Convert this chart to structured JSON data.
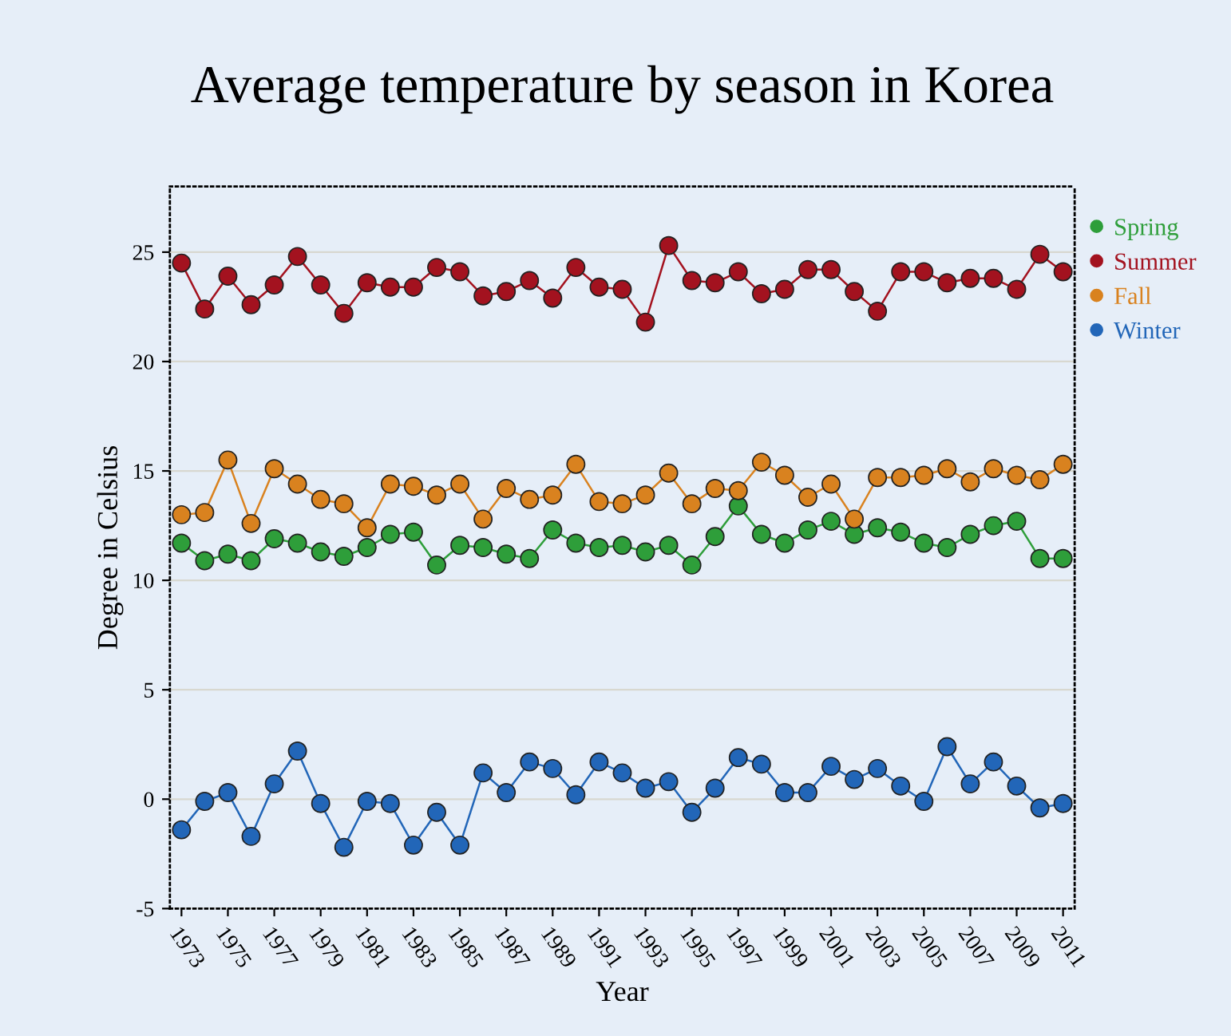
{
  "chart_data": {
    "type": "line",
    "title": "Average temperature by season in Korea",
    "xlabel": "Year",
    "ylabel": "Degree in Celsius",
    "x": [
      1973,
      1974,
      1975,
      1976,
      1977,
      1978,
      1979,
      1980,
      1981,
      1982,
      1983,
      1984,
      1985,
      1986,
      1987,
      1988,
      1989,
      1990,
      1991,
      1992,
      1993,
      1994,
      1995,
      1996,
      1997,
      1998,
      1999,
      2000,
      2001,
      2002,
      2003,
      2004,
      2005,
      2006,
      2007,
      2008,
      2009,
      2010,
      2011
    ],
    "series": [
      {
        "name": "Spring",
        "color": "#2e9e3a",
        "values": [
          11.7,
          10.9,
          11.2,
          10.9,
          11.9,
          11.7,
          11.3,
          11.1,
          11.5,
          12.1,
          12.2,
          10.7,
          11.6,
          11.5,
          11.2,
          11.0,
          12.3,
          11.7,
          11.5,
          11.6,
          11.3,
          11.6,
          10.7,
          12.0,
          13.4,
          12.1,
          11.7,
          12.3,
          12.7,
          12.1,
          12.4,
          12.2,
          11.7,
          11.5,
          12.1,
          12.5,
          12.7,
          11.0,
          11.0
        ]
      },
      {
        "name": "Summer",
        "color": "#a3121f",
        "values": [
          24.5,
          22.4,
          23.9,
          22.6,
          23.5,
          24.8,
          23.5,
          22.2,
          23.6,
          23.4,
          23.4,
          24.3,
          24.1,
          23.0,
          23.2,
          23.7,
          22.9,
          24.3,
          23.4,
          23.3,
          21.8,
          25.3,
          23.7,
          23.6,
          24.1,
          23.1,
          23.3,
          24.2,
          24.2,
          23.2,
          22.3,
          24.1,
          24.1,
          23.6,
          23.8,
          23.8,
          23.3,
          24.9,
          24.1
        ]
      },
      {
        "name": "Fall",
        "color": "#d9821f",
        "values": [
          13.0,
          13.1,
          15.5,
          12.6,
          15.1,
          14.4,
          13.7,
          13.5,
          12.4,
          14.4,
          14.3,
          13.9,
          14.4,
          12.8,
          14.2,
          13.7,
          13.9,
          15.3,
          13.6,
          13.5,
          13.9,
          14.9,
          13.5,
          14.2,
          14.1,
          15.4,
          14.8,
          13.8,
          14.4,
          12.8,
          14.7,
          14.7,
          14.8,
          15.1,
          14.5,
          15.1,
          14.8,
          14.6,
          15.3
        ]
      },
      {
        "name": "Winter",
        "color": "#2266b8",
        "values": [
          -1.4,
          -0.1,
          0.3,
          -1.7,
          0.7,
          2.2,
          -0.2,
          -2.2,
          -0.1,
          -0.2,
          -2.1,
          -0.6,
          -2.1,
          1.2,
          0.3,
          1.7,
          1.4,
          0.2,
          1.7,
          1.2,
          0.5,
          0.8,
          -0.6,
          0.5,
          1.9,
          1.6,
          0.3,
          0.3,
          1.5,
          0.9,
          1.4,
          0.6,
          -0.1,
          2.4,
          0.7,
          1.7,
          0.6,
          -0.4,
          -0.2
        ]
      }
    ],
    "xlim": [
      1972.5,
      2011.5
    ],
    "xticks": [
      1973,
      1975,
      1977,
      1979,
      1981,
      1983,
      1985,
      1987,
      1989,
      1991,
      1993,
      1995,
      1997,
      1999,
      2001,
      2003,
      2005,
      2007,
      2009,
      2011
    ],
    "ylim": [
      -5,
      28
    ],
    "yticks": [
      -5,
      0,
      5,
      10,
      15,
      20,
      25
    ],
    "grid": "y",
    "legend": "right",
    "marker": "circle",
    "line_style": "solid"
  }
}
